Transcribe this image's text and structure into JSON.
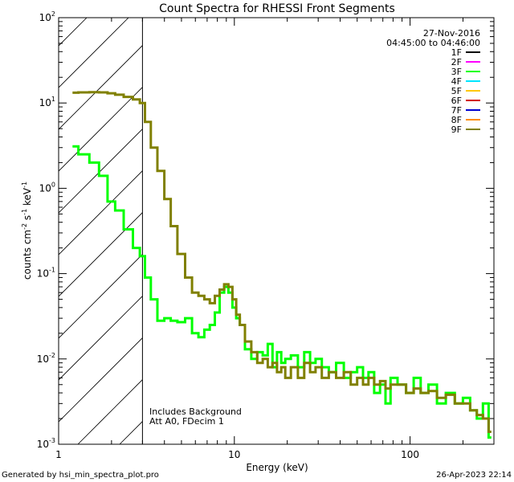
{
  "chart_data": {
    "type": "line",
    "title": "Count Spectra for RHESSI Front Segments",
    "xlabel": "Energy (keV)",
    "ylabel_parts": {
      "base": "counts cm",
      "exp1": "-2",
      "mid": " s",
      "exp2": "-1",
      "mid2": " keV",
      "exp3": "-1"
    },
    "xscale": "log",
    "yscale": "log",
    "xlim": [
      1,
      300
    ],
    "ylim": [
      0.001,
      100
    ],
    "x_ticks": [
      {
        "value": 10,
        "label": "10"
      },
      {
        "value": 100,
        "label": "100"
      }
    ],
    "x_tick_label_1": "1",
    "y_ticks": [
      {
        "value": 0.001,
        "base": "10",
        "exp": "-3"
      },
      {
        "value": 0.01,
        "base": "10",
        "exp": "-2"
      },
      {
        "value": 0.1,
        "base": "10",
        "exp": "-1"
      },
      {
        "value": 1,
        "base": "10",
        "exp": "0"
      },
      {
        "value": 10,
        "base": "10",
        "exp": "1"
      },
      {
        "value": 100,
        "base": "10",
        "exp": "2"
      }
    ],
    "hatched_region_keV": [
      1,
      3
    ],
    "annotation_date": "27-Nov-2016",
    "annotation_time": "04:45:00 to 04:46:00",
    "annotation_bottom": [
      "Includes Background",
      "Att A0, FDecim 1"
    ],
    "legend": [
      {
        "label": "1F",
        "color": "#000000"
      },
      {
        "label": "2F",
        "color": "#ff00ff"
      },
      {
        "label": "3F",
        "color": "#00ff00"
      },
      {
        "label": "4F",
        "color": "#00e5ff"
      },
      {
        "label": "5F",
        "color": "#ffc800"
      },
      {
        "label": "6F",
        "color": "#d20000"
      },
      {
        "label": "7F",
        "color": "#0000d0"
      },
      {
        "label": "8F",
        "color": "#ff8c00"
      },
      {
        "label": "9F",
        "color": "#808000"
      }
    ],
    "series": [
      {
        "name": "3F",
        "color": "#00ff00",
        "x": [
          1.2,
          1.4,
          1.6,
          1.8,
          2.0,
          2.2,
          2.5,
          2.8,
          3.0,
          3.2,
          3.5,
          3.8,
          4.2,
          4.5,
          5.0,
          5.5,
          6.0,
          6.5,
          7.0,
          7.5,
          8.0,
          8.5,
          9.0,
          9.5,
          10.0,
          10.5,
          11.0,
          12.0,
          13.0,
          14.0,
          15.0,
          16.0,
          17.0,
          18.0,
          19.0,
          20.0,
          22.0,
          24.0,
          26.0,
          28.0,
          30.0,
          33.0,
          36.0,
          40.0,
          44.0,
          48.0,
          52.0,
          56.0,
          60.0,
          65.0,
          70.0,
          75.0,
          80.0,
          90.0,
          100.0,
          110.0,
          120.0,
          135.0,
          150.0,
          170.0,
          190.0,
          210.0,
          230.0,
          250.0,
          270.0,
          290.0
        ],
        "y": [
          3.1,
          2.5,
          2.0,
          1.4,
          0.7,
          0.55,
          0.33,
          0.2,
          0.16,
          0.09,
          0.05,
          0.028,
          0.03,
          0.028,
          0.027,
          0.03,
          0.02,
          0.018,
          0.022,
          0.025,
          0.035,
          0.06,
          0.07,
          0.06,
          0.04,
          0.03,
          0.025,
          0.013,
          0.01,
          0.012,
          0.011,
          0.015,
          0.008,
          0.012,
          0.009,
          0.01,
          0.011,
          0.008,
          0.012,
          0.009,
          0.01,
          0.008,
          0.007,
          0.009,
          0.006,
          0.007,
          0.008,
          0.006,
          0.007,
          0.004,
          0.005,
          0.003,
          0.006,
          0.005,
          0.004,
          0.006,
          0.004,
          0.005,
          0.003,
          0.004,
          0.003,
          0.0035,
          0.0025,
          0.002,
          0.003,
          0.0012
        ]
      },
      {
        "name": "9F",
        "color": "#808000",
        "x": [
          1.2,
          1.4,
          1.6,
          1.8,
          2.0,
          2.2,
          2.5,
          2.8,
          3.0,
          3.2,
          3.5,
          3.8,
          4.2,
          4.5,
          5.0,
          5.5,
          6.0,
          6.5,
          7.0,
          7.5,
          8.0,
          8.5,
          9.0,
          9.5,
          10.0,
          10.5,
          11.0,
          12.0,
          13.0,
          14.0,
          15.0,
          16.0,
          17.0,
          18.0,
          19.0,
          20.0,
          22.0,
          24.0,
          26.0,
          28.0,
          30.0,
          33.0,
          36.0,
          40.0,
          44.0,
          48.0,
          52.0,
          56.0,
          60.0,
          65.0,
          70.0,
          75.0,
          80.0,
          90.0,
          100.0,
          110.0,
          120.0,
          135.0,
          150.0,
          170.0,
          190.0,
          210.0,
          230.0,
          250.0,
          270.0,
          290.0
        ],
        "y": [
          13.2,
          13.3,
          13.4,
          13.3,
          13.0,
          12.5,
          11.8,
          11.0,
          10.0,
          6.0,
          3.0,
          1.6,
          0.75,
          0.36,
          0.17,
          0.09,
          0.06,
          0.055,
          0.05,
          0.045,
          0.055,
          0.065,
          0.075,
          0.07,
          0.05,
          0.033,
          0.025,
          0.016,
          0.012,
          0.009,
          0.01,
          0.008,
          0.009,
          0.007,
          0.008,
          0.006,
          0.008,
          0.006,
          0.009,
          0.007,
          0.008,
          0.006,
          0.007,
          0.006,
          0.007,
          0.005,
          0.006,
          0.005,
          0.006,
          0.005,
          0.0055,
          0.0045,
          0.005,
          0.005,
          0.004,
          0.0045,
          0.004,
          0.0042,
          0.0035,
          0.0038,
          0.003,
          0.003,
          0.0025,
          0.0022,
          0.002,
          0.0014
        ]
      }
    ]
  },
  "footer": {
    "generated_by": "Generated by hsi_min_spectra_plot.pro",
    "timestamp": "26-Apr-2023 22:14"
  }
}
